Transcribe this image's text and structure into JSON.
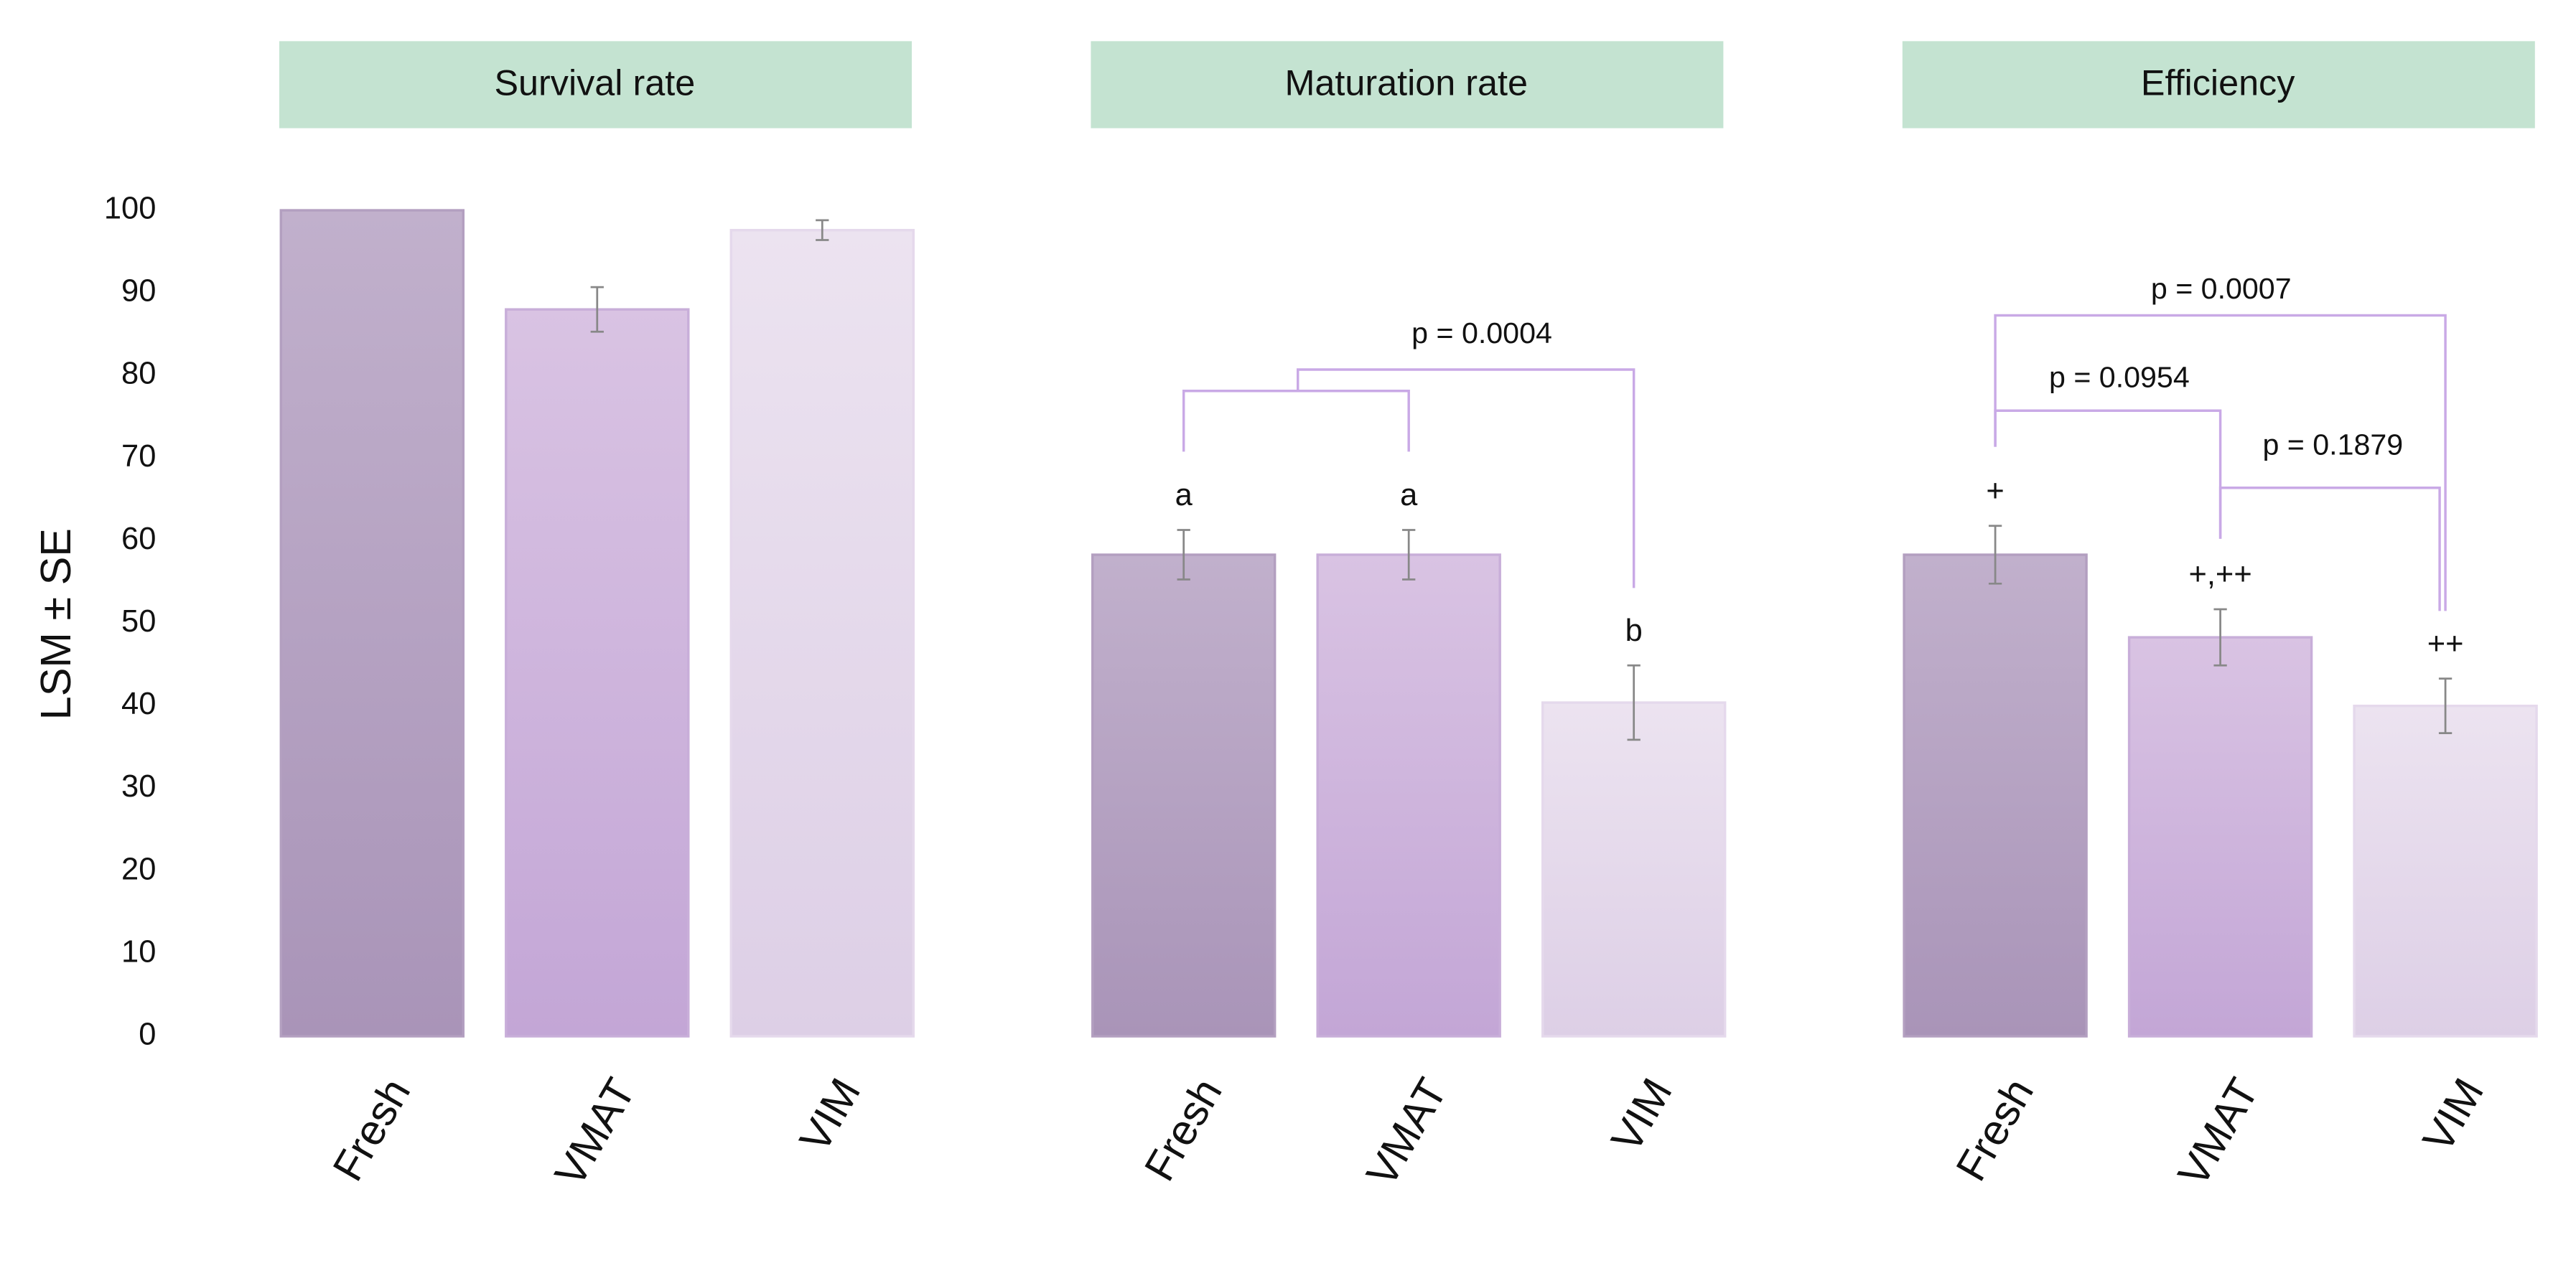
{
  "chart_data": [
    {
      "type": "bar",
      "title": "Survival rate",
      "y_label": "LSM ± SE",
      "categories": [
        "Fresh",
        "VMAT",
        "VIM"
      ],
      "values": [
        100,
        88,
        97.6
      ],
      "errors": [
        0,
        2.7,
        1.2
      ],
      "colors": [
        "#b39fc0",
        "#c8aed9",
        "#e5d9ec"
      ],
      "ylim": [
        0,
        100
      ],
      "yticks": [
        0,
        10,
        20,
        30,
        40,
        50,
        60,
        70,
        80,
        90,
        100
      ]
    },
    {
      "type": "bar",
      "title": "Maturation rate",
      "categories": [
        "Fresh",
        "VMAT",
        "VIM"
      ],
      "values": [
        58.3,
        58.3,
        40.4
      ],
      "errors": [
        3,
        3,
        4.5
      ],
      "colors": [
        "#b39fc0",
        "#c8aed9",
        "#e5d9ec"
      ],
      "ylim": [
        0,
        100
      ],
      "group_labels": [
        "a",
        "a",
        "b"
      ],
      "p_values": [
        "p = 0.0004"
      ]
    },
    {
      "type": "bar",
      "title": "Efficiency",
      "categories": [
        "Fresh",
        "VMAT",
        "VIM"
      ],
      "values": [
        58.3,
        48.3,
        40
      ],
      "errors": [
        3.5,
        3.4,
        3.3
      ],
      "colors": [
        "#b39fc0",
        "#c8aed9",
        "#e5d9ec"
      ],
      "ylim": [
        0,
        100
      ],
      "group_labels": [
        "+",
        "+,++",
        "++"
      ],
      "p_values": [
        "p = 0.0007",
        "p = 0.0954",
        "p = 0.1879"
      ]
    }
  ]
}
